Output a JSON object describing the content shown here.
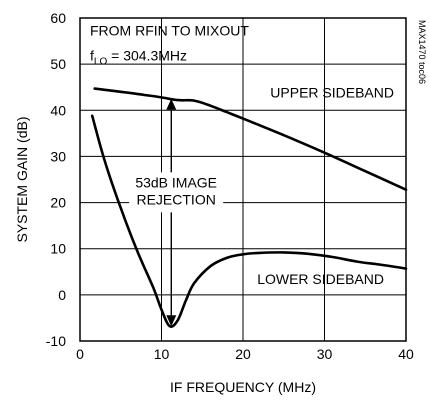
{
  "chart_data": {
    "type": "line",
    "xlabel": "IF FREQUENCY (MHz)",
    "ylabel": "SYSTEM GAIN (dB)",
    "xlim": [
      0,
      40
    ],
    "ylim": [
      -10,
      60
    ],
    "x_ticks": [
      "0",
      "10",
      "20",
      "30",
      "40"
    ],
    "y_ticks": [
      "-10",
      "0",
      "10",
      "20",
      "30",
      "40",
      "50",
      "60"
    ],
    "grid": true,
    "annotation_lines": [
      "FROM RFIN TO MIXOUT",
      "f",
      "LO",
      " = 304.3MHz"
    ],
    "image_rejection_text": [
      "53dB IMAGE",
      "REJECTION"
    ],
    "side_code": "MAX1470 toc06",
    "series": [
      {
        "name": "UPPER SIDEBAND",
        "x": [
          1.8,
          5,
          8,
          10,
          12,
          14,
          16,
          18,
          20,
          25,
          30,
          35,
          40
        ],
        "y": [
          44.7,
          44.0,
          43.3,
          42.8,
          42.2,
          42.1,
          41.0,
          39.6,
          38.2,
          34.6,
          30.8,
          26.8,
          22.8
        ]
      },
      {
        "name": "LOWER SIDEBAND",
        "x": [
          1.5,
          3,
          5,
          7,
          9,
          10,
          11,
          12,
          13,
          14,
          16,
          18,
          20,
          22,
          25,
          28,
          31,
          34,
          37,
          40
        ],
        "y": [
          38.8,
          29.2,
          18.8,
          9.6,
          1.5,
          -3.2,
          -6.8,
          -5.5,
          -1.2,
          2.5,
          6.2,
          8.0,
          8.8,
          9.1,
          9.2,
          8.9,
          8.2,
          7.2,
          6.5,
          5.7
        ]
      }
    ]
  }
}
